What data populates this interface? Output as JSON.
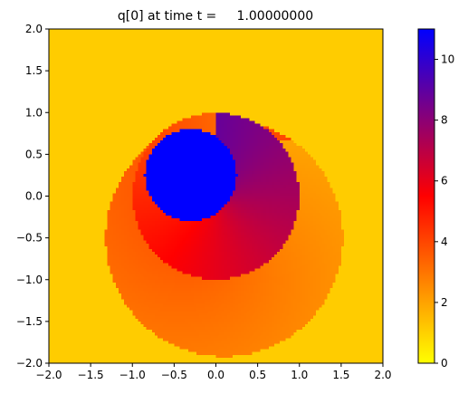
{
  "chart_data": {
    "type": "heatmap",
    "title": "q[0] at time t =     1.00000000",
    "xlabel": "",
    "ylabel": "",
    "xlim": [
      -2.0,
      2.0
    ],
    "ylim": [
      -2.0,
      2.0
    ],
    "x_ticks": [
      -2.0,
      -1.5,
      -1.0,
      -0.5,
      0.0,
      0.5,
      1.0,
      1.5,
      2.0
    ],
    "x_tick_labels": [
      "−2.0",
      "−1.5",
      "−1.0",
      "−0.5",
      "0.0",
      "0.5",
      "1.0",
      "1.5",
      "2.0"
    ],
    "y_ticks": [
      -2.0,
      -1.5,
      -1.0,
      -0.5,
      0.0,
      0.5,
      1.0,
      1.5,
      2.0
    ],
    "y_tick_labels": [
      "−2.0",
      "−1.5",
      "−1.0",
      "−0.5",
      "0.0",
      "0.5",
      "1.0",
      "1.5",
      "2.0"
    ],
    "grid": false,
    "colorbar": {
      "range": [
        0,
        11
      ],
      "ticks": [
        0,
        2,
        4,
        6,
        8,
        10
      ],
      "tick_labels": [
        "0",
        "2",
        "4",
        "6",
        "8",
        "10"
      ],
      "colormap": [
        {
          "value": 0,
          "color": "#ffff00"
        },
        {
          "value": 2.75,
          "color": "#ff8000"
        },
        {
          "value": 5.5,
          "color": "#ff0000"
        },
        {
          "value": 8.25,
          "color": "#800080"
        },
        {
          "value": 11,
          "color": "#0000ff"
        }
      ]
    },
    "field": {
      "background_value": 1.1,
      "outer_swirl": {
        "center": [
          0.1,
          -0.5
        ],
        "radius": 1.42,
        "value_range": [
          2.0,
          4.0
        ]
      },
      "disc": {
        "center": [
          0.0,
          0.0
        ],
        "radius": 1.0,
        "value_range": [
          3.3,
          8.8
        ]
      },
      "inner_blob": {
        "center": [
          -0.3,
          0.25
        ],
        "radius": 0.55,
        "value": 11.0
      }
    }
  }
}
